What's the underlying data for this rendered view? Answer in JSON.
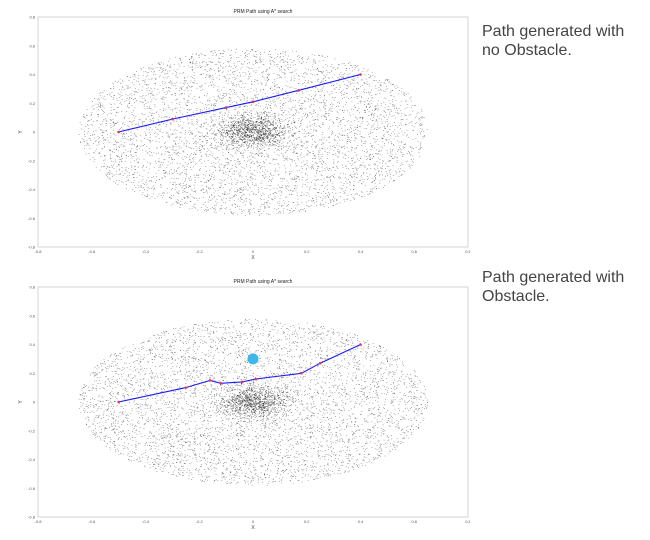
{
  "captions": {
    "top": "Path generated with\nno Obstacle.",
    "bottom": "Path generated with\nObstacle."
  },
  "colors": {
    "path": "#1a1aff",
    "nodes": "#e8344a",
    "samples": "#000000",
    "obstacle": "#3fb6ea",
    "frame": "#bbbbbb"
  },
  "chart_data": [
    {
      "type": "scatter",
      "title": "PRM Path using A* search",
      "xlabel": "X",
      "ylabel": "Y",
      "xlim": [
        -0.8,
        0.8
      ],
      "ylim": [
        -0.8,
        0.8
      ],
      "xticks": [
        "-0.8",
        "-0.6",
        "-0.4",
        "-0.2",
        "0",
        "0.2",
        "0.4",
        "0.6",
        "0.8"
      ],
      "yticks": [
        "-0.8",
        "-0.6",
        "-0.4",
        "-0.2",
        "0",
        "0.2",
        "0.4",
        "0.6",
        "0.8"
      ],
      "grid": false,
      "series": [
        {
          "kind": "samples",
          "description_count": 6000
        },
        {
          "kind": "path",
          "x": [
            -0.5,
            -0.3,
            -0.1,
            0.0,
            0.17,
            0.4
          ],
          "y": [
            0.0,
            0.09,
            0.17,
            0.21,
            0.29,
            0.4
          ]
        }
      ],
      "obstacle": null
    },
    {
      "type": "scatter",
      "title": "PRM Path using A* search",
      "xlabel": "X",
      "ylabel": "Y",
      "xlim": [
        -0.8,
        0.8
      ],
      "ylim": [
        -0.8,
        0.8
      ],
      "xticks": [
        "-0.8",
        "-0.6",
        "-0.4",
        "-0.2",
        "0",
        "0.2",
        "0.4",
        "0.6",
        "0.8"
      ],
      "yticks": [
        "-0.8",
        "-0.6",
        "-0.4",
        "-0.2",
        "0",
        "0.2",
        "0.4",
        "0.6",
        "0.8"
      ],
      "grid": false,
      "series": [
        {
          "kind": "samples",
          "description_count": 6000
        },
        {
          "kind": "path",
          "x": [
            -0.5,
            -0.25,
            -0.16,
            -0.12,
            -0.04,
            0.01,
            0.18,
            0.25,
            0.4
          ],
          "y": [
            0.0,
            0.1,
            0.15,
            0.13,
            0.14,
            0.16,
            0.2,
            0.27,
            0.4
          ]
        }
      ],
      "obstacle": {
        "x": 0.0,
        "y": 0.3,
        "r": 0.02
      }
    }
  ]
}
